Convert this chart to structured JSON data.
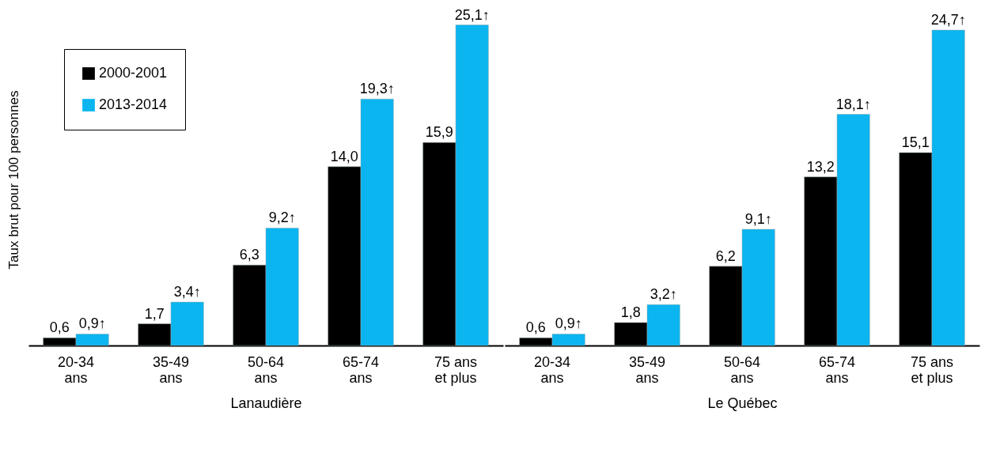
{
  "chart_data": [
    {
      "type": "bar",
      "xlabel": "Lanaudière",
      "ylabel": "Taux brut pour 100 personnes",
      "categories": [
        "20-34\nans",
        "35-49\nans",
        "50-64\nans",
        "65-74\nans",
        "75 ans\net plus"
      ],
      "series": [
        {
          "name": "2000-2001",
          "color": "#000000",
          "values": [
            0.6,
            1.7,
            6.3,
            14.0,
            15.9
          ],
          "value_labels": [
            "0,6",
            "1,7",
            "6,3",
            "14,0",
            "15,9"
          ]
        },
        {
          "name": "2013-2014",
          "color": "#0bb5f0",
          "values": [
            0.9,
            3.4,
            9.2,
            19.3,
            25.1
          ],
          "value_labels": [
            "0,9↑",
            "3,4↑",
            "9,2↑",
            "19,3↑",
            "25,1↑"
          ]
        }
      ],
      "legend": "top left",
      "grid": false,
      "tick_labels": "x"
    },
    {
      "type": "bar",
      "xlabel": "Le Québec",
      "categories": [
        "20-34\nans",
        "35-49\nans",
        "50-64\nans",
        "65-74\nans",
        "75 ans\net plus"
      ],
      "series": [
        {
          "color": "#000000",
          "values": [
            0.6,
            1.8,
            6.2,
            13.2,
            15.1
          ],
          "value_labels": [
            "0,6",
            "1,8",
            "6,2",
            "13,2",
            "15,1"
          ]
        },
        {
          "color": "#0bb5f0",
          "values": [
            0.9,
            3.2,
            9.1,
            18.1,
            24.7
          ],
          "value_labels": [
            "0,9↑",
            "3,2↑",
            "9,1↑",
            "18,1↑",
            "24,7↑"
          ]
        }
      ],
      "legend": false,
      "grid": false,
      "tick_labels": "x"
    }
  ]
}
